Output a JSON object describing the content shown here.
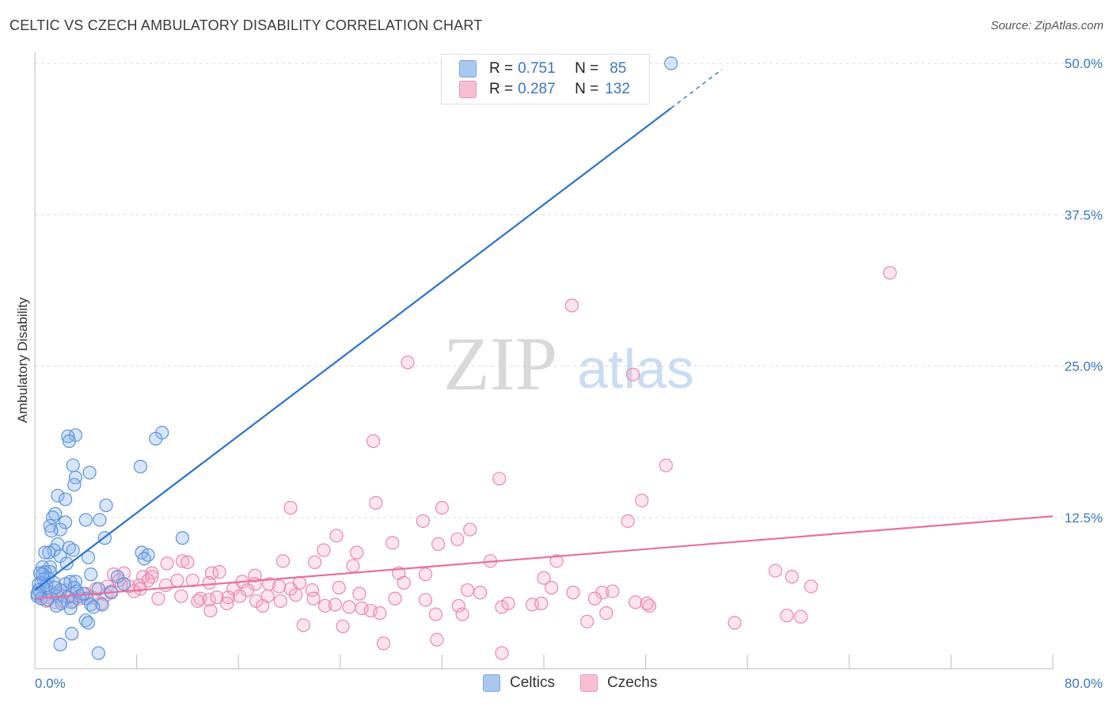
{
  "header": {
    "title": "CELTIC VS CZECH AMBULATORY DISABILITY CORRELATION CHART",
    "source": "Source: ZipAtlas.com"
  },
  "watermark": {
    "zip": "ZIP",
    "atlas": "atlas"
  },
  "legend": {
    "rows": [
      {
        "r_label": "R =",
        "r_value": "0.751",
        "n_label": "N =",
        "n_value": "85",
        "color": "#a9c8f0",
        "border": "#7aa6e0"
      },
      {
        "r_label": "R =",
        "r_value": "0.287",
        "n_label": "N =",
        "n_value": "132",
        "color": "#f7c0d2",
        "border": "#ee94b4"
      }
    ]
  },
  "bottom_legend": [
    {
      "label": "Celtics",
      "color": "#a9c8f0",
      "border": "#7aa6e0"
    },
    {
      "label": "Czechs",
      "color": "#f7c0d2",
      "border": "#ee94b4"
    }
  ],
  "colors": {
    "celtics_fill": "rgba(140,180,235,0.35)",
    "celtics_stroke": "#5b93dc",
    "celtics_line": "#2a72d1",
    "czechs_fill": "rgba(245,170,198,0.30)",
    "czechs_stroke": "#ea86ab",
    "czechs_line": "#e8709c",
    "tick_text": "#3b76c4",
    "grid": "#dddddd"
  },
  "chart_data": {
    "type": "scatter",
    "title": "CELTIC VS CZECH AMBULATORY DISABILITY CORRELATION CHART",
    "xlabel": "",
    "ylabel": "Ambulatory Disability",
    "xlim": [
      0,
      80
    ],
    "ylim": [
      0,
      50
    ],
    "x_tick_labels": [
      "0.0%",
      "80.0%"
    ],
    "y_ticks": [
      12.5,
      25.0,
      37.5,
      50.0
    ],
    "y_tick_labels": [
      "12.5%",
      "25.0%",
      "37.5%",
      "50.0%"
    ],
    "series": [
      {
        "name": "Celtics",
        "R": 0.751,
        "N": 85,
        "trend": {
          "x0": 0,
          "y0": 6.5,
          "x1": 50,
          "y1": 46.3,
          "dashed_to_x": 54,
          "dashed_to_y": 49.5
        },
        "points": [
          [
            50,
            50
          ],
          [
            10,
            19.5
          ],
          [
            3.2,
            19.3
          ],
          [
            2.6,
            19.2
          ],
          [
            9.5,
            19
          ],
          [
            2.7,
            18.8
          ],
          [
            8.3,
            16.7
          ],
          [
            3,
            16.8
          ],
          [
            4.3,
            16.2
          ],
          [
            3.2,
            15.8
          ],
          [
            3.1,
            15.2
          ],
          [
            1.8,
            14.3
          ],
          [
            2.4,
            14
          ],
          [
            1.6,
            12.8
          ],
          [
            5.6,
            13.5
          ],
          [
            1.4,
            12.5
          ],
          [
            5.1,
            12.3
          ],
          [
            4,
            12.3
          ],
          [
            2.4,
            12.1
          ],
          [
            1.2,
            11.8
          ],
          [
            2,
            11.5
          ],
          [
            1.3,
            11.4
          ],
          [
            11.6,
            10.8
          ],
          [
            5.5,
            10.8
          ],
          [
            1.8,
            10.3
          ],
          [
            2.7,
            10
          ],
          [
            1.5,
            9.8
          ],
          [
            3,
            9.8
          ],
          [
            1.1,
            9.6
          ],
          [
            0.8,
            9.6
          ],
          [
            8.4,
            9.6
          ],
          [
            8.9,
            9.4
          ],
          [
            8.6,
            9.1
          ],
          [
            4.2,
            9.2
          ],
          [
            2,
            9.3
          ],
          [
            2.5,
            8.7
          ],
          [
            1.2,
            8.4
          ],
          [
            0.6,
            8.4
          ],
          [
            0.8,
            8
          ],
          [
            1.2,
            8
          ],
          [
            0.4,
            7.9
          ],
          [
            4.4,
            7.8
          ],
          [
            1,
            7.5
          ],
          [
            6.5,
            7.6
          ],
          [
            0.7,
            7.4
          ],
          [
            2.8,
            7.2
          ],
          [
            3.2,
            7.2
          ],
          [
            1.5,
            7.1
          ],
          [
            0.5,
            7.1
          ],
          [
            2.4,
            7
          ],
          [
            0.3,
            7
          ],
          [
            3.1,
            6.7
          ],
          [
            5,
            6.6
          ],
          [
            0.8,
            6.6
          ],
          [
            0.3,
            6.5
          ],
          [
            2,
            6.5
          ],
          [
            3.3,
            6.4
          ],
          [
            0.4,
            6.3
          ],
          [
            1.3,
            6.3
          ],
          [
            1.8,
            6
          ],
          [
            0.2,
            6
          ],
          [
            3.5,
            6
          ],
          [
            2.6,
            5.9
          ],
          [
            4.1,
            5.8
          ],
          [
            0.5,
            5.8
          ],
          [
            2.9,
            5.5
          ],
          [
            2.1,
            5.4
          ],
          [
            4.4,
            5.3
          ],
          [
            5.3,
            5.3
          ],
          [
            1.7,
            5.2
          ],
          [
            4.6,
            5.1
          ],
          [
            2.8,
            5
          ],
          [
            7,
            7
          ],
          [
            0.9,
            6.9
          ],
          [
            1.6,
            6.7
          ],
          [
            0.2,
            6.2
          ],
          [
            3.8,
            6.2
          ],
          [
            6,
            6.3
          ],
          [
            1,
            5.7
          ],
          [
            4,
            4
          ],
          [
            4.2,
            3.8
          ],
          [
            2.9,
            2.9
          ],
          [
            2,
            2
          ],
          [
            5,
            1.3
          ],
          [
            0.6,
            7.8
          ]
        ]
      },
      {
        "name": "Czechs",
        "R": 0.287,
        "N": 132,
        "trend": {
          "x0": 0,
          "y0": 5.8,
          "x1": 80,
          "y1": 12.6
        },
        "points": [
          [
            67.2,
            32.7
          ],
          [
            42.2,
            30
          ],
          [
            29.3,
            25.3
          ],
          [
            47,
            24.3
          ],
          [
            26.6,
            18.8
          ],
          [
            49.6,
            16.8
          ],
          [
            36.5,
            15.7
          ],
          [
            47.7,
            13.9
          ],
          [
            20.1,
            13.3
          ],
          [
            26.8,
            13.7
          ],
          [
            32,
            13.3
          ],
          [
            30.5,
            12.2
          ],
          [
            46.6,
            12.2
          ],
          [
            34.2,
            11.5
          ],
          [
            23.7,
            11
          ],
          [
            28.1,
            10.4
          ],
          [
            33.2,
            10.7
          ],
          [
            31.7,
            10.3
          ],
          [
            22.7,
            9.8
          ],
          [
            25.3,
            9.6
          ],
          [
            19.5,
            8.9
          ],
          [
            22,
            8.8
          ],
          [
            35.8,
            8.9
          ],
          [
            41,
            8.9
          ],
          [
            11.6,
            8.9
          ],
          [
            10.4,
            8.7
          ],
          [
            12,
            8.8
          ],
          [
            25,
            8.5
          ],
          [
            58.2,
            8.1
          ],
          [
            59.5,
            7.6
          ],
          [
            28.6,
            7.9
          ],
          [
            30.7,
            7.8
          ],
          [
            7,
            7.9
          ],
          [
            13.9,
            7.9
          ],
          [
            14.5,
            8
          ],
          [
            17.3,
            7.7
          ],
          [
            9.2,
            7.9
          ],
          [
            8.5,
            7.6
          ],
          [
            6.2,
            7.8
          ],
          [
            40,
            7.5
          ],
          [
            20.8,
            7.1
          ],
          [
            12.4,
            7.3
          ],
          [
            11.2,
            7.3
          ],
          [
            16.3,
            7.2
          ],
          [
            17.3,
            7
          ],
          [
            18.4,
            7
          ],
          [
            8.9,
            7.3
          ],
          [
            8.2,
            6.9
          ],
          [
            6.6,
            7.3
          ],
          [
            5.7,
            6.8
          ],
          [
            7.4,
            6.8
          ],
          [
            8.3,
            6.6
          ],
          [
            13.7,
            7.1
          ],
          [
            15.6,
            6.6
          ],
          [
            19.2,
            6.8
          ],
          [
            20.1,
            6.6
          ],
          [
            10.3,
            6.9
          ],
          [
            21.8,
            6.5
          ],
          [
            23.9,
            6.7
          ],
          [
            29,
            7.1
          ],
          [
            34,
            6.5
          ],
          [
            35,
            6.3
          ],
          [
            40.6,
            6.7
          ],
          [
            44.6,
            6.3
          ],
          [
            45.4,
            6.4
          ],
          [
            61,
            6.8
          ],
          [
            4,
            6.2
          ],
          [
            4.8,
            6.6
          ],
          [
            2.9,
            6.1
          ],
          [
            1.8,
            6.3
          ],
          [
            1.1,
            5.9
          ],
          [
            3.5,
            5.8
          ],
          [
            0.5,
            5.8
          ],
          [
            1.6,
            5.5
          ],
          [
            0.9,
            5.6
          ],
          [
            2.2,
            5.6
          ],
          [
            4.5,
            5.9
          ],
          [
            5.6,
            6.1
          ],
          [
            6,
            6.4
          ],
          [
            9.7,
            5.8
          ],
          [
            11.5,
            6
          ],
          [
            13,
            5.8
          ],
          [
            13.7,
            5.7
          ],
          [
            14.3,
            5.9
          ],
          [
            15.2,
            5.9
          ],
          [
            16.1,
            6
          ],
          [
            17.4,
            5.6
          ],
          [
            18.3,
            6
          ],
          [
            19.3,
            5.6
          ],
          [
            20.5,
            6.1
          ],
          [
            21.9,
            5.8
          ],
          [
            22.8,
            5.2
          ],
          [
            23.6,
            5.3
          ],
          [
            25.7,
            5
          ],
          [
            26.4,
            4.8
          ],
          [
            28.3,
            5.8
          ],
          [
            30.7,
            5.7
          ],
          [
            31.5,
            4.5
          ],
          [
            33.3,
            5.2
          ],
          [
            33.6,
            4.5
          ],
          [
            36.7,
            5.1
          ],
          [
            37.2,
            5.4
          ],
          [
            39.1,
            5.3
          ],
          [
            43.4,
            3.9
          ],
          [
            44.9,
            4.6
          ],
          [
            47.2,
            5.5
          ],
          [
            48.3,
            5.2
          ],
          [
            55,
            3.8
          ],
          [
            59.1,
            4.4
          ],
          [
            60.2,
            4.3
          ],
          [
            12.8,
            5.6
          ],
          [
            13.8,
            4.8
          ],
          [
            17.9,
            5.2
          ],
          [
            21.1,
            3.6
          ],
          [
            24.2,
            3.5
          ],
          [
            27.4,
            2.1
          ],
          [
            31.6,
            2.4
          ],
          [
            36.7,
            1.3
          ],
          [
            27.1,
            4.6
          ],
          [
            48.1,
            5.4
          ],
          [
            44,
            5.8
          ],
          [
            7.8,
            6.4
          ],
          [
            6.8,
            6.9
          ],
          [
            5.2,
            5.4
          ],
          [
            3,
            5.6
          ],
          [
            2.4,
            6.5
          ],
          [
            15.1,
            5.4
          ],
          [
            24.7,
            5.1
          ],
          [
            16.7,
            6.5
          ],
          [
            9.2,
            7.6
          ],
          [
            42.3,
            6.3
          ],
          [
            39.8,
            5.4
          ],
          [
            25.5,
            6.2
          ]
        ]
      }
    ]
  }
}
